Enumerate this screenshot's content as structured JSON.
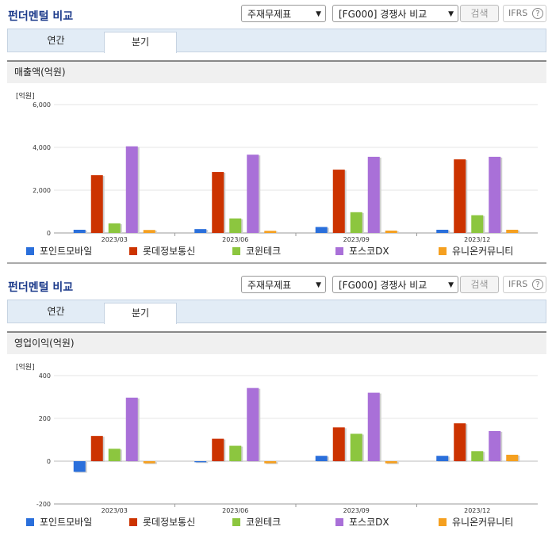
{
  "panels": [
    {
      "title": "펀더멘털 비교",
      "select1": "주재무제표",
      "select2": "[FG000] 경쟁사 비교",
      "search_label": "검색",
      "ifrs_label": "IFRS",
      "ifrs_help": "?",
      "tabs": [
        "연간",
        "분기"
      ],
      "active_tab": "분기",
      "section_title": "매출액(억원)",
      "unit_label": "[억원]"
    },
    {
      "title": "펀더멘털 비교",
      "select1": "주재무제표",
      "select2": "[FG000] 경쟁사 비교",
      "search_label": "검색",
      "ifrs_label": "IFRS",
      "ifrs_help": "?",
      "tabs": [
        "연간",
        "분기"
      ],
      "active_tab": "분기",
      "section_title": "영업이익(억원)",
      "unit_label": "[억원]"
    }
  ],
  "colors": {
    "포인트모바일": "#2a6fdb",
    "롯데정보통신": "#cc3300",
    "코윈테크": "#8cc63f",
    "포스코DX": "#a970d8",
    "유니온커뮤니티": "#f5a020"
  },
  "chart_data": [
    {
      "type": "bar",
      "title": "매출액(억원)",
      "ylabel": "[억원]",
      "categories": [
        "2023/03",
        "2023/06",
        "2023/09",
        "2023/12"
      ],
      "ylim": [
        0,
        6000
      ],
      "yticks": [
        "0",
        "2,000",
        "4,000",
        "6,000"
      ],
      "ytick_values": [
        0,
        2000,
        4000,
        6000
      ],
      "series": [
        {
          "name": "포인트모바일",
          "values": [
            150,
            180,
            280,
            150
          ]
        },
        {
          "name": "롯데정보통신",
          "values": [
            2700,
            2850,
            2960,
            3440
          ]
        },
        {
          "name": "코윈테크",
          "values": [
            450,
            680,
            970,
            830
          ]
        },
        {
          "name": "포스코DX",
          "values": [
            4050,
            3660,
            3560,
            3560
          ]
        },
        {
          "name": "유니온커뮤니티",
          "values": [
            140,
            100,
            110,
            150
          ]
        }
      ]
    },
    {
      "type": "bar",
      "title": "영업이익(억원)",
      "ylabel": "[억원]",
      "categories": [
        "2023/03",
        "2023/06",
        "2023/09",
        "2023/12"
      ],
      "ylim": [
        -200,
        400
      ],
      "yticks": [
        "-200",
        "0",
        "200",
        "400"
      ],
      "ytick_values": [
        -200,
        0,
        200,
        400
      ],
      "series": [
        {
          "name": "포인트모바일",
          "values": [
            -50,
            -5,
            25,
            25
          ]
        },
        {
          "name": "롯데정보통신",
          "values": [
            118,
            105,
            158,
            177
          ]
        },
        {
          "name": "코윈테크",
          "values": [
            58,
            72,
            128,
            47
          ]
        },
        {
          "name": "포스코DX",
          "values": [
            297,
            342,
            320,
            141
          ]
        },
        {
          "name": "유니온커뮤니티",
          "values": [
            -10,
            -10,
            -10,
            30
          ]
        }
      ]
    }
  ]
}
